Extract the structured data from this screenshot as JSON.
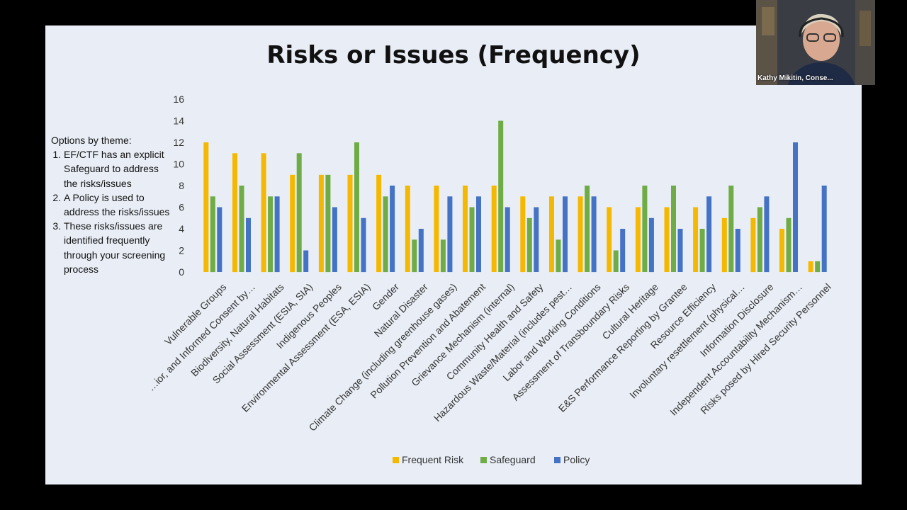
{
  "slide": {
    "title": "Risks or Issues (Frequency)",
    "side_note": {
      "heading": "Options by theme:",
      "items": [
        "EF/CTF has an explicit Safeguard to address the risks/issues",
        "A Policy is used to address the risks/issues",
        "These risks/issues are identified frequently through your screening process"
      ]
    }
  },
  "video": {
    "participant_name": "Kathy Mikitin, Conse..."
  },
  "colors": {
    "frequent_risk": "#f5b800",
    "safeguard": "#6fac46",
    "policy": "#4472c4",
    "slide_bg": "#e9eef6"
  },
  "chart_data": {
    "type": "bar",
    "title": "Risks or Issues (Frequency)",
    "xlabel": "",
    "ylabel": "",
    "ylim": [
      0,
      16
    ],
    "yticks": [
      0,
      2,
      4,
      6,
      8,
      10,
      12,
      14,
      16
    ],
    "grid": false,
    "legend": "bottom",
    "categories": [
      "Vulnerable Groups",
      "…ior, and Informed Consent by…",
      "Biodiversity, Natural Habitats",
      "Social Assessment (ESIA, SIA)",
      "Indigenous Peoples",
      "Environmental Assessment (ESA, ESIA)",
      "Gender",
      "Natural Disaster",
      "Climate Change (including greenhouse gases)",
      "Pollution Prevention and Abatement",
      "Grievance Mechanism (internal)",
      "Community Health and Safety",
      "Hazardous Waste/Material (includes pest…",
      "Labor and Working Conditions",
      "Assessment of Transboundary Risks",
      "Cultural Heritage",
      "E&S Performance Reporting by Grantee",
      "Resource Efficiency",
      "Involuntary resettlement (physical…",
      "Information Disclosure",
      "Independent Accountability Mechanism…",
      "Risks posed by Hired Security Personnel"
    ],
    "series": [
      {
        "name": "Frequent Risk",
        "values": [
          12,
          11,
          11,
          9,
          9,
          9,
          9,
          8,
          8,
          8,
          8,
          7,
          7,
          7,
          6,
          6,
          6,
          6,
          5,
          5,
          4,
          1
        ]
      },
      {
        "name": "Safeguard",
        "values": [
          7,
          8,
          7,
          11,
          9,
          12,
          7,
          3,
          3,
          6,
          14,
          5,
          3,
          8,
          2,
          8,
          8,
          4,
          8,
          6,
          5,
          1
        ]
      },
      {
        "name": "Policy",
        "values": [
          6,
          5,
          7,
          2,
          6,
          5,
          8,
          4,
          7,
          7,
          6,
          6,
          7,
          7,
          4,
          5,
          4,
          7,
          4,
          7,
          12,
          8
        ]
      }
    ]
  }
}
